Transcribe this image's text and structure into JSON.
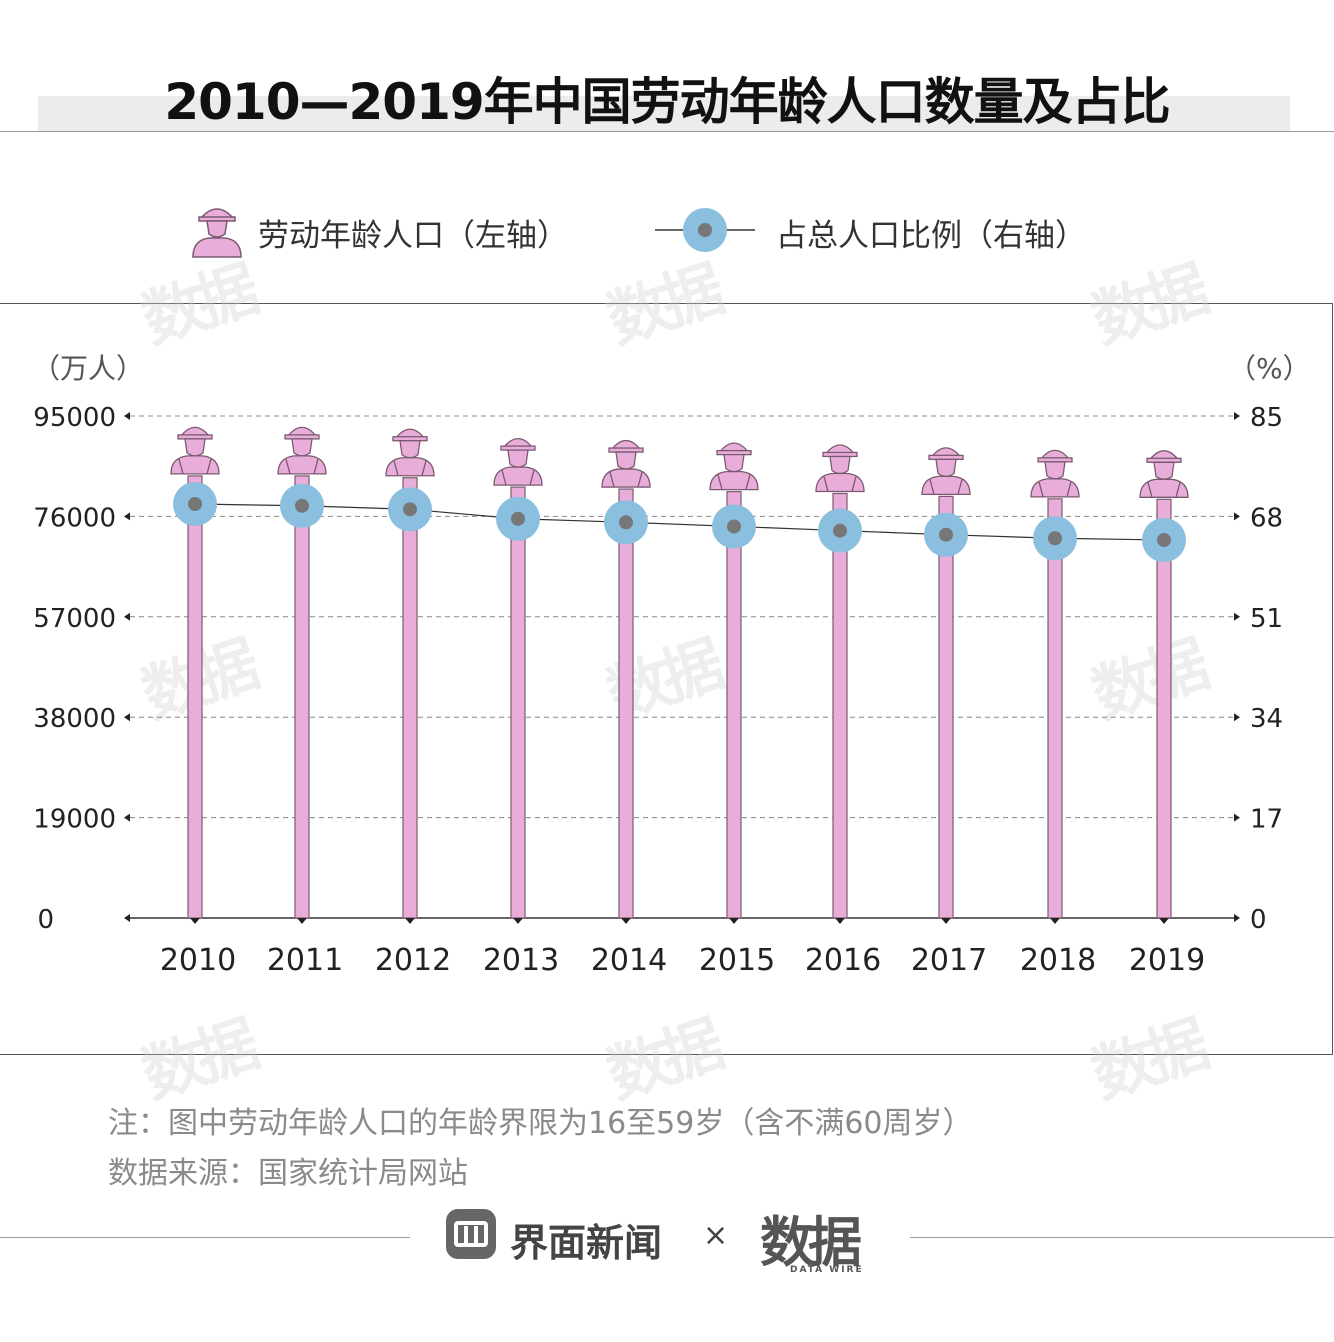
{
  "title": "2010—2019年中国劳动年龄人口数量及占比",
  "legend": {
    "left_series": "劳动年龄人口（左轴）",
    "right_series": "占总人口比例（右轴）"
  },
  "axes": {
    "left_unit": "（万人）",
    "right_unit": "（%）",
    "left_ticks": [
      "95000",
      "76000",
      "57000",
      "38000",
      "19000",
      "0"
    ],
    "right_ticks": [
      "85",
      "68",
      "51",
      "34",
      "17",
      "0"
    ]
  },
  "chart_data": {
    "type": "bar",
    "categories": [
      "2010",
      "2011",
      "2012",
      "2013",
      "2014",
      "2015",
      "2016",
      "2017",
      "2018",
      "2019"
    ],
    "series": [
      {
        "name": "劳动年龄人口（左轴）",
        "axis": "left",
        "values": [
          94072,
          94072,
          93727,
          91954,
          91583,
          91096,
          90747,
          90199,
          89729,
          89640
        ]
      },
      {
        "name": "占总人口比例（右轴）",
        "axis": "right",
        "values": [
          70.1,
          69.8,
          69.2,
          67.6,
          67.0,
          66.3,
          65.6,
          64.9,
          64.3,
          64.0
        ]
      }
    ],
    "ylim_left": [
      0,
      95000
    ],
    "ylim_right": [
      0,
      85
    ],
    "ylabel_left": "（万人）",
    "ylabel_right": "（%）",
    "colors": {
      "bar": "#e8aed9",
      "bar_edge": "#7a5a70",
      "marker": "#8bbfe0",
      "marker_dot": "#777777",
      "line": "#333333"
    }
  },
  "notes": {
    "note": "注：图中劳动年龄人口的年龄界限为16至59岁（含不满60周岁）",
    "source": "数据来源：国家统计局网站"
  },
  "footer": {
    "brand1": "界面新闻",
    "times": "×",
    "brand2": "数据",
    "brand2_sub": "DATA WIRE"
  },
  "watermark": "数据"
}
